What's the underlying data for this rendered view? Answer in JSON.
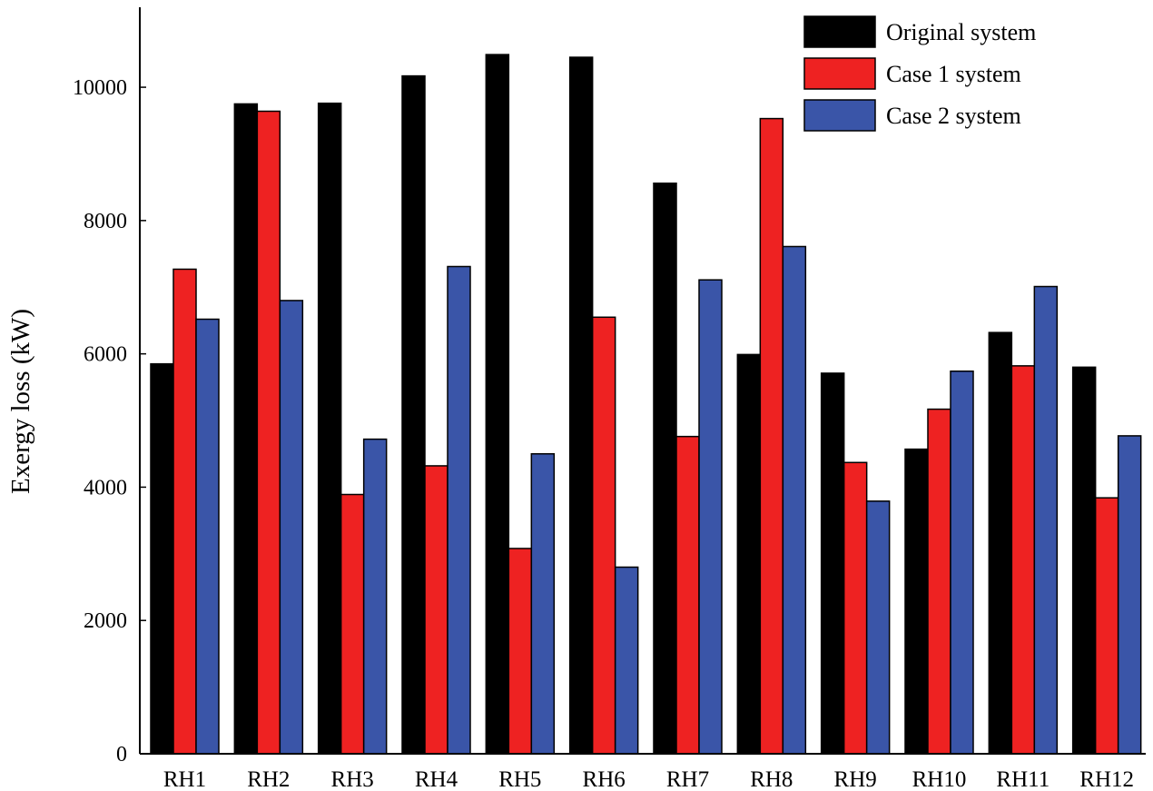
{
  "chart_data": {
    "type": "bar",
    "title": "",
    "xlabel": "",
    "ylabel": "Exergy loss (kW)",
    "ylim": [
      0,
      11200
    ],
    "yticks": [
      0,
      2000,
      4000,
      6000,
      8000,
      10000
    ],
    "grid": false,
    "legend_position": "top-right",
    "categories": [
      "RH1",
      "RH2",
      "RH3",
      "RH4",
      "RH5",
      "RH6",
      "RH7",
      "RH8",
      "RH9",
      "RH10",
      "RH11",
      "RH12"
    ],
    "series": [
      {
        "name": "Original system",
        "color": "#000000",
        "values": [
          5850,
          9750,
          9760,
          10170,
          10490,
          10450,
          8560,
          5990,
          5710,
          4570,
          6320,
          5800
        ]
      },
      {
        "name": "Case 1 system",
        "color": "#ee2222",
        "values": [
          7270,
          9640,
          3890,
          4320,
          3080,
          6550,
          4760,
          9530,
          4370,
          5170,
          5820,
          3840
        ]
      },
      {
        "name": "Case 2 system",
        "color": "#3a55a8",
        "values": [
          6520,
          6800,
          4720,
          7310,
          4500,
          2800,
          7110,
          7610,
          3790,
          5740,
          7010,
          4770
        ]
      }
    ]
  }
}
